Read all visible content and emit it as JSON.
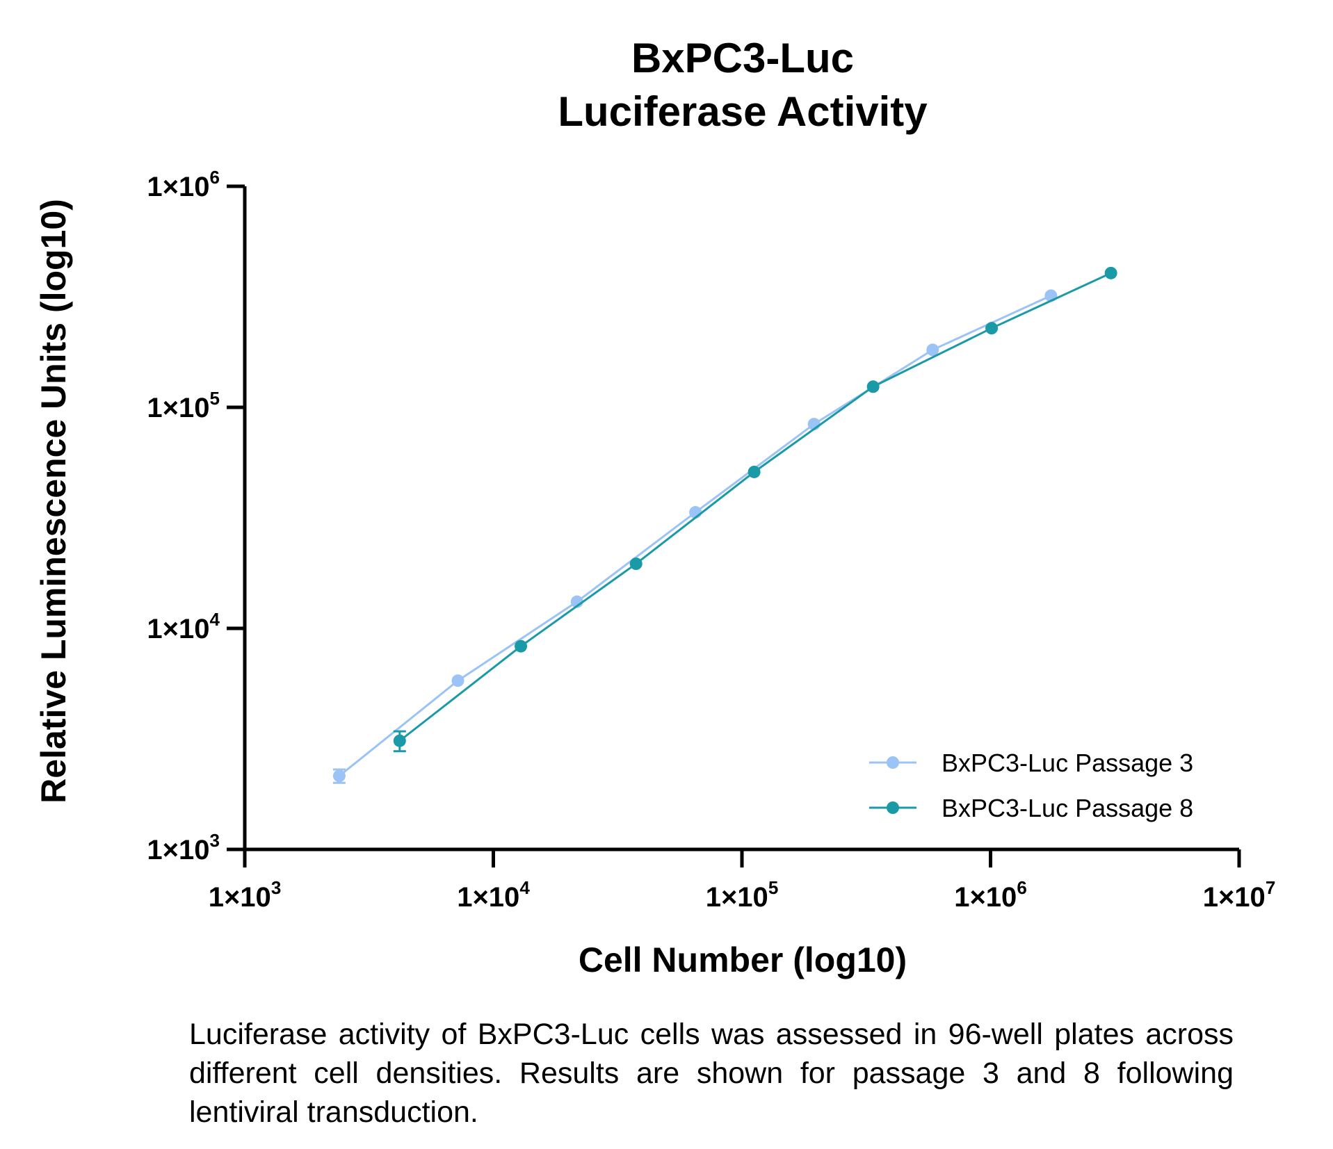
{
  "chart_data": {
    "type": "line",
    "title": [
      "BxPC3-Luc",
      "Luciferase Activity"
    ],
    "xlabel": "Cell Number (log10)",
    "ylabel": "Relative Luminescence Units (log10)",
    "x_scale": "log",
    "y_scale": "log",
    "xlim": [
      1000,
      10000000
    ],
    "ylim": [
      1000,
      1000000
    ],
    "x_ticks": [
      {
        "value": 1000,
        "base": "1×10",
        "exp": "3"
      },
      {
        "value": 10000,
        "base": "1×10",
        "exp": "4"
      },
      {
        "value": 100000,
        "base": "1×10",
        "exp": "5"
      },
      {
        "value": 1000000,
        "base": "1×10",
        "exp": "6"
      },
      {
        "value": 10000000,
        "base": "1×10",
        "exp": "7"
      }
    ],
    "y_ticks": [
      {
        "value": 1000,
        "base": "1×10",
        "exp": "3"
      },
      {
        "value": 10000,
        "base": "1×10",
        "exp": "4"
      },
      {
        "value": 100000,
        "base": "1×10",
        "exp": "5"
      },
      {
        "value": 1000000,
        "base": "1×10",
        "exp": "6"
      }
    ],
    "grid": false,
    "legend_position": "bottom-right",
    "series": [
      {
        "name": "BxPC3-Luc Passage 3",
        "color": "#9cc3f5",
        "points": [
          {
            "x": 2400,
            "y": 2150,
            "err": 150
          },
          {
            "x": 7200,
            "y": 5800
          },
          {
            "x": 21700,
            "y": 13200
          },
          {
            "x": 65000,
            "y": 33500
          },
          {
            "x": 195000,
            "y": 84000
          },
          {
            "x": 585000,
            "y": 182000
          },
          {
            "x": 1750000,
            "y": 320000
          }
        ]
      },
      {
        "name": "BxPC3-Luc Passage 8",
        "color": "#1a9aa6",
        "points": [
          {
            "x": 4200,
            "y": 3100,
            "err": 320
          },
          {
            "x": 12900,
            "y": 8300
          },
          {
            "x": 37500,
            "y": 19600
          },
          {
            "x": 112000,
            "y": 51000
          },
          {
            "x": 337000,
            "y": 124000
          },
          {
            "x": 1010000,
            "y": 228000
          },
          {
            "x": 3050000,
            "y": 405000
          }
        ]
      }
    ]
  },
  "caption": "Luciferase activity of BxPC3-Luc cells was assessed in 96-well plates across different cell densities. Results are shown for passage 3 and 8 following lentiviral transduction."
}
